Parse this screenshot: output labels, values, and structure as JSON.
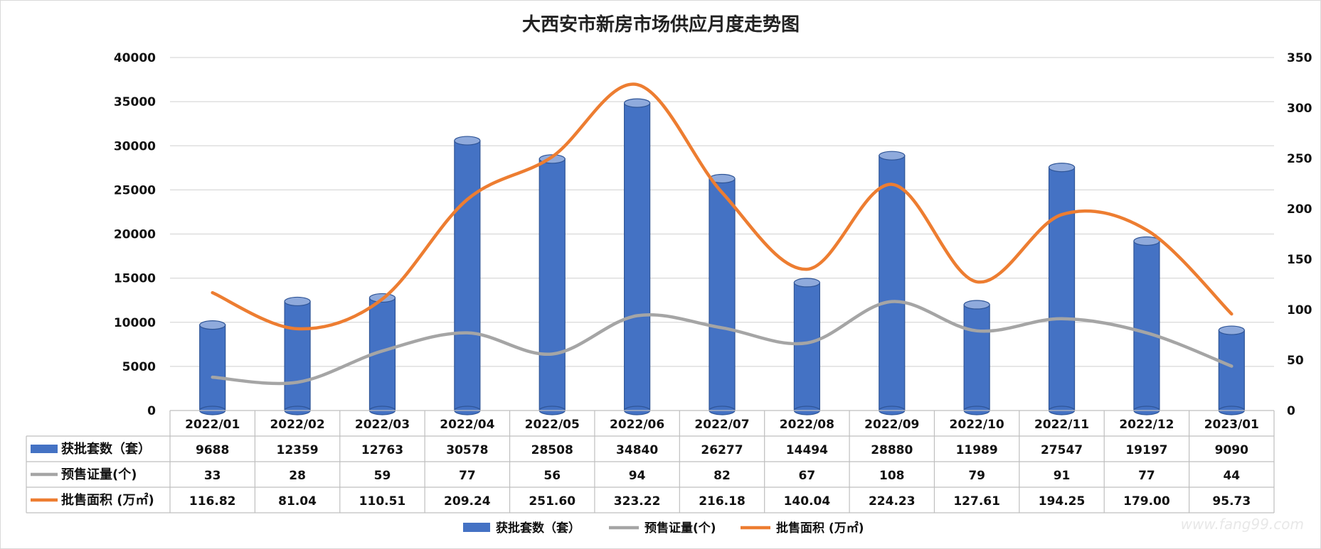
{
  "chart_data": {
    "type": "bar",
    "title": "大西安市新房市场供应月度走势图",
    "categories": [
      "2022/01",
      "2022/02",
      "2022/03",
      "2022/04",
      "2022/05",
      "2022/06",
      "2022/07",
      "2022/08",
      "2022/09",
      "2022/10",
      "2022/11",
      "2022/12",
      "2023/01"
    ],
    "ylim_left": [
      0,
      40000
    ],
    "yticks_left": [
      "0",
      "5000",
      "10000",
      "15000",
      "20000",
      "25000",
      "30000",
      "35000",
      "40000"
    ],
    "ylim_right": [
      0,
      350
    ],
    "yticks_right": [
      "0",
      "50",
      "100",
      "150",
      "200",
      "250",
      "300",
      "350"
    ],
    "grid": true,
    "legend_position": "bottom",
    "data_table": true,
    "series": [
      {
        "name": "获批套数（套）",
        "type": "bar",
        "axis": "left",
        "color": "#4472C4",
        "values": [
          9688,
          12359,
          12763,
          30578,
          28508,
          34840,
          26277,
          14494,
          28880,
          11989,
          27547,
          19197,
          9090
        ],
        "labels": [
          "9688",
          "12359",
          "12763",
          "30578",
          "28508",
          "34840",
          "26277",
          "14494",
          "28880",
          "11989",
          "27547",
          "19197",
          "9090"
        ]
      },
      {
        "name": "预售证量(个)",
        "type": "line",
        "axis": "right",
        "color": "#A5A5A5",
        "values": [
          33,
          28,
          59,
          77,
          56,
          94,
          82,
          67,
          108,
          79,
          91,
          77,
          44
        ],
        "labels": [
          "33",
          "28",
          "59",
          "77",
          "56",
          "94",
          "82",
          "67",
          "108",
          "79",
          "91",
          "77",
          "44"
        ]
      },
      {
        "name": "批售面积 (万㎡)",
        "type": "line",
        "axis": "right",
        "color": "#ED7D31",
        "values": [
          116.82,
          81.04,
          110.51,
          209.24,
          251.6,
          323.22,
          216.18,
          140.04,
          224.23,
          127.61,
          194.25,
          179.0,
          95.73
        ],
        "labels": [
          "116.82",
          "81.04",
          "110.51",
          "209.24",
          "251.60",
          "323.22",
          "216.18",
          "140.04",
          "224.23",
          "127.61",
          "194.25",
          "179.00",
          "95.73"
        ]
      }
    ],
    "legend_names": [
      "获批套数（套）",
      "预售证量(个)",
      "批售面积 (万㎡)"
    ],
    "watermark": "www.fang99.com"
  }
}
